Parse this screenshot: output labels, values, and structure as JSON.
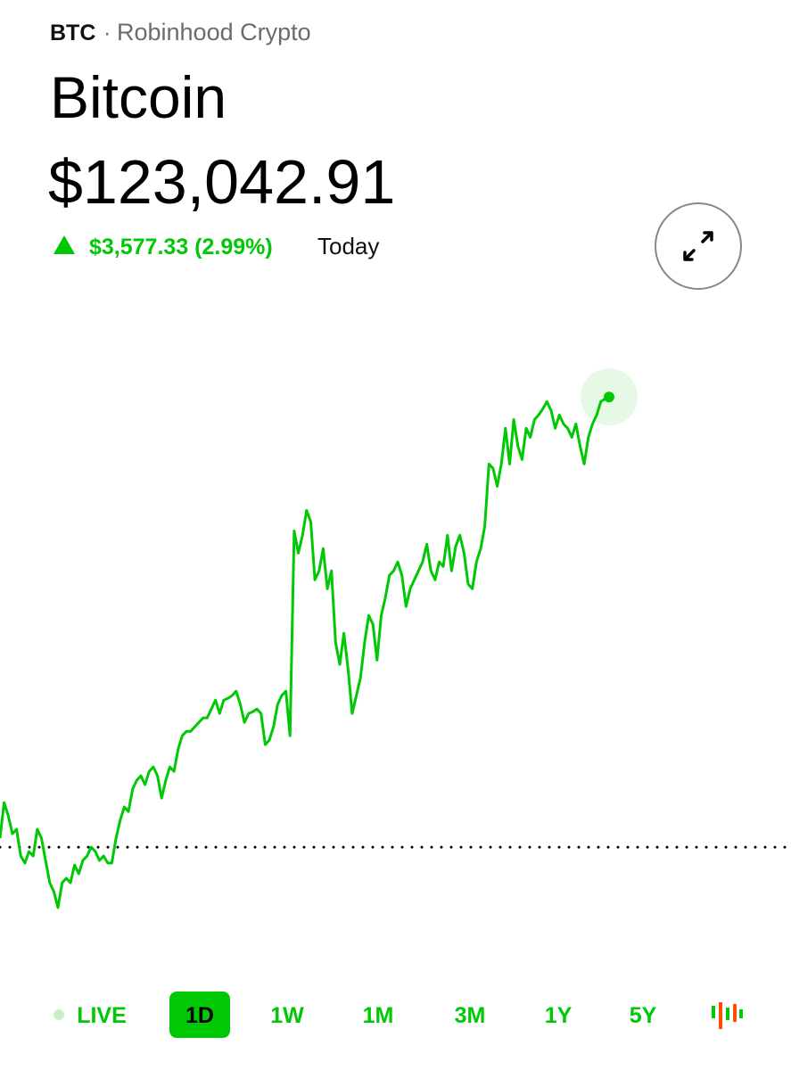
{
  "header": {
    "ticker": "BTC",
    "source": "Robinhood Crypto",
    "name": "Bitcoin",
    "price": "$123,042.91",
    "change": "$3,577.33 (2.99%)",
    "period": "Today"
  },
  "chart_data": {
    "type": "line",
    "color": "#00c805",
    "values": [
      119537,
      119820,
      119714,
      119572,
      119608,
      119395,
      119339,
      119431,
      119395,
      119608,
      119537,
      119360,
      119183,
      119112,
      118985,
      119183,
      119218,
      119183,
      119324,
      119254,
      119360,
      119395,
      119466,
      119431,
      119360,
      119395,
      119339,
      119339,
      119537,
      119678,
      119785,
      119749,
      119926,
      119997,
      120032,
      119962,
      120068,
      120103,
      120032,
      119855,
      119997,
      120103,
      120068,
      120245,
      120351,
      120386,
      120386,
      120422,
      120457,
      120493,
      120493,
      120563,
      120634,
      120528,
      120634,
      120648,
      120670,
      120705,
      120599,
      120457,
      120528,
      120542,
      120563,
      120528,
      120280,
      120316,
      120422,
      120599,
      120670,
      120705,
      120351,
      121979,
      121802,
      121944,
      122142,
      122050,
      121590,
      121661,
      121838,
      121519,
      121661,
      121094,
      120917,
      121165,
      120882,
      120528,
      120670,
      120811,
      121094,
      121307,
      121236,
      120953,
      121307,
      121448,
      121625,
      121661,
      121732,
      121625,
      121378,
      121519,
      121590,
      121661,
      121732,
      121873,
      121661,
      121590,
      121732,
      121696,
      121944,
      121661,
      121859,
      121944,
      121802,
      121555,
      121519,
      121732,
      121838,
      122015,
      122510,
      122475,
      122333,
      122510,
      122794,
      122510,
      122864,
      122652,
      122546,
      122794,
      122723,
      122864,
      122900,
      122949,
      123006,
      122935,
      122794,
      122900,
      122829,
      122794,
      122723,
      122829,
      122652,
      122510,
      122723,
      122829,
      122900,
      123006,
      123027,
      123042.91
    ],
    "baseline": 119465.58,
    "ylim": [
      118545,
      123505
    ]
  },
  "tabs": [
    "LIVE",
    "1D",
    "1W",
    "1M",
    "3M",
    "1Y",
    "5Y"
  ],
  "selected_tab": 1
}
